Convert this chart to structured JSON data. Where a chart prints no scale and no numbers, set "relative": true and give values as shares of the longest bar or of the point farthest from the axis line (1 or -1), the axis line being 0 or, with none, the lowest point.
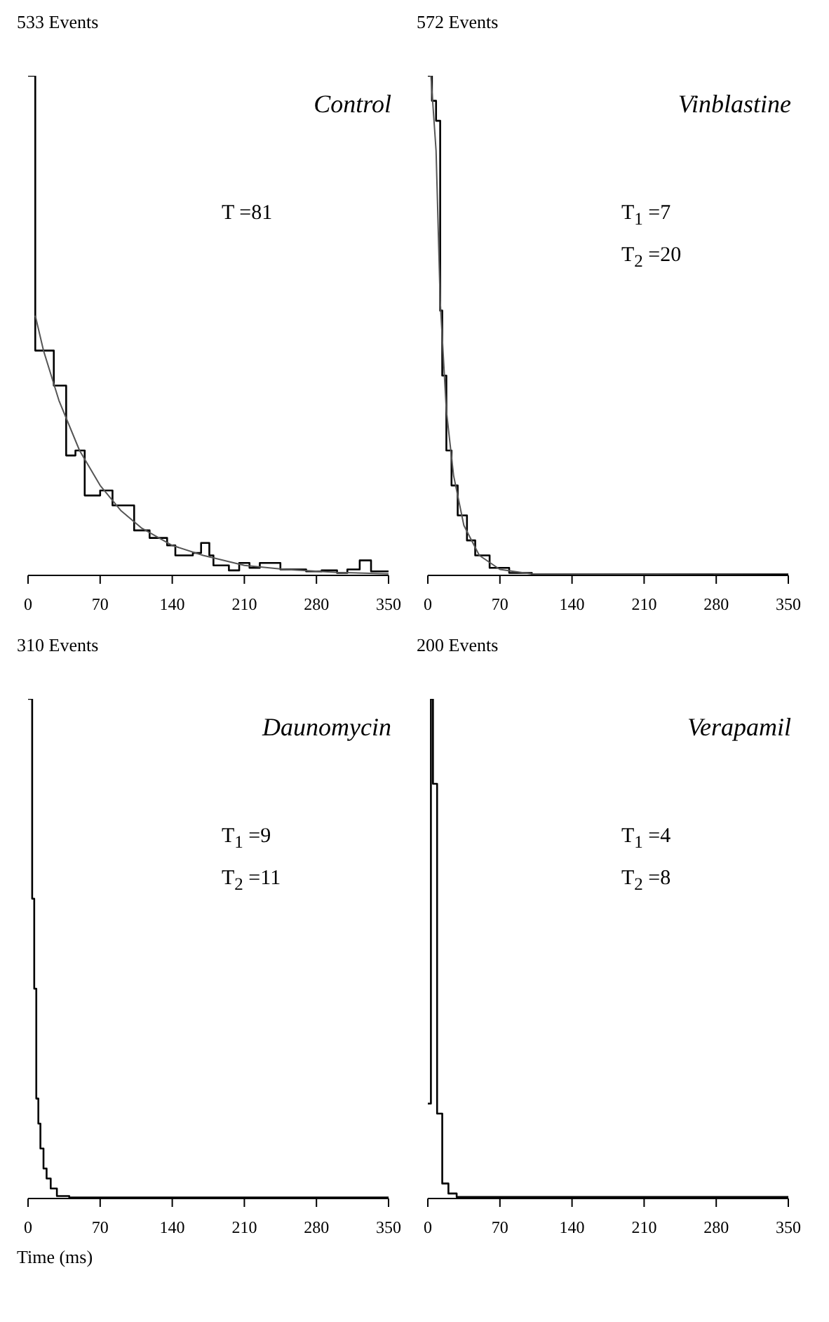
{
  "chart_data": [
    {
      "type": "step",
      "title": "533 Events",
      "subtitle": "Control",
      "annotations": [
        "T =81"
      ],
      "xlim": [
        0,
        350
      ],
      "xticks": [
        0,
        70,
        140,
        210,
        280,
        350
      ],
      "relative": true,
      "series": [
        {
          "color": "#000000",
          "x": [
            0,
            7,
            25,
            37,
            46,
            55,
            70,
            82,
            103,
            118,
            135,
            143,
            160,
            168,
            176,
            180,
            195,
            205,
            215,
            225,
            245,
            270,
            285,
            300,
            310,
            322,
            333,
            350
          ],
          "values": [
            1.0,
            0.45,
            0.38,
            0.24,
            0.25,
            0.16,
            0.17,
            0.14,
            0.09,
            0.075,
            0.06,
            0.04,
            0.045,
            0.065,
            0.04,
            0.02,
            0.01,
            0.025,
            0.015,
            0.025,
            0.012,
            0.008,
            0.01,
            0.005,
            0.012,
            0.03,
            0.008,
            0.008
          ]
        },
        {
          "type": "line",
          "color": "#555555",
          "x": [
            7,
            15,
            30,
            50,
            70,
            90,
            110,
            140,
            170,
            210,
            250,
            300,
            350
          ],
          "values": [
            0.52,
            0.45,
            0.35,
            0.25,
            0.18,
            0.13,
            0.095,
            0.06,
            0.04,
            0.02,
            0.012,
            0.006,
            0.003
          ]
        }
      ]
    },
    {
      "type": "step",
      "title": "572 Events",
      "subtitle": "Vinblastine",
      "annotations": [
        "T$_{1}$ =7",
        "T$_{2}$ =20"
      ],
      "xlim": [
        0,
        350
      ],
      "xticks": [
        0,
        70,
        140,
        210,
        280,
        350
      ],
      "relative": true,
      "series": [
        {
          "color": "#000000",
          "x": [
            0,
            4,
            8,
            12,
            14,
            18,
            23,
            29,
            38,
            46,
            60,
            79,
            101,
            350
          ],
          "values": [
            1.0,
            0.95,
            0.91,
            0.53,
            0.4,
            0.25,
            0.18,
            0.12,
            0.07,
            0.04,
            0.015,
            0.005,
            0.002,
            0.002
          ]
        },
        {
          "type": "line",
          "color": "#555555",
          "x": [
            3,
            8,
            12,
            18,
            25,
            35,
            50,
            70,
            100,
            350
          ],
          "values": [
            1.0,
            0.85,
            0.55,
            0.33,
            0.2,
            0.1,
            0.04,
            0.012,
            0.003,
            0.0
          ]
        }
      ]
    },
    {
      "type": "step",
      "title": "310 Events",
      "subtitle": "Daunomycin",
      "annotations": [
        "T$_{1}$ =9",
        "T$_{2}$ =11"
      ],
      "xlabel": "Time (ms)",
      "xlim": [
        0,
        350
      ],
      "xticks": [
        0,
        70,
        140,
        210,
        280,
        350
      ],
      "relative": true,
      "series": [
        {
          "color": "#000000",
          "x": [
            0,
            4,
            6,
            8,
            10,
            12,
            15,
            18,
            22,
            28,
            40,
            350
          ],
          "values": [
            1.0,
            0.6,
            0.42,
            0.2,
            0.15,
            0.1,
            0.06,
            0.04,
            0.02,
            0.005,
            0.002,
            0.002
          ]
        }
      ]
    },
    {
      "type": "step",
      "title": "200 Events",
      "subtitle": "Verapamil",
      "annotations": [
        "T$_{1}$ =4",
        "T$_{2}$ =8"
      ],
      "xlim": [
        0,
        350
      ],
      "xticks": [
        0,
        70,
        140,
        210,
        280,
        350
      ],
      "relative": true,
      "series": [
        {
          "color": "#000000",
          "x": [
            0,
            3,
            5,
            9,
            14,
            20,
            28,
            350
          ],
          "values": [
            0.19,
            1.0,
            0.83,
            0.17,
            0.03,
            0.01,
            0.003,
            0.003
          ]
        }
      ]
    }
  ]
}
